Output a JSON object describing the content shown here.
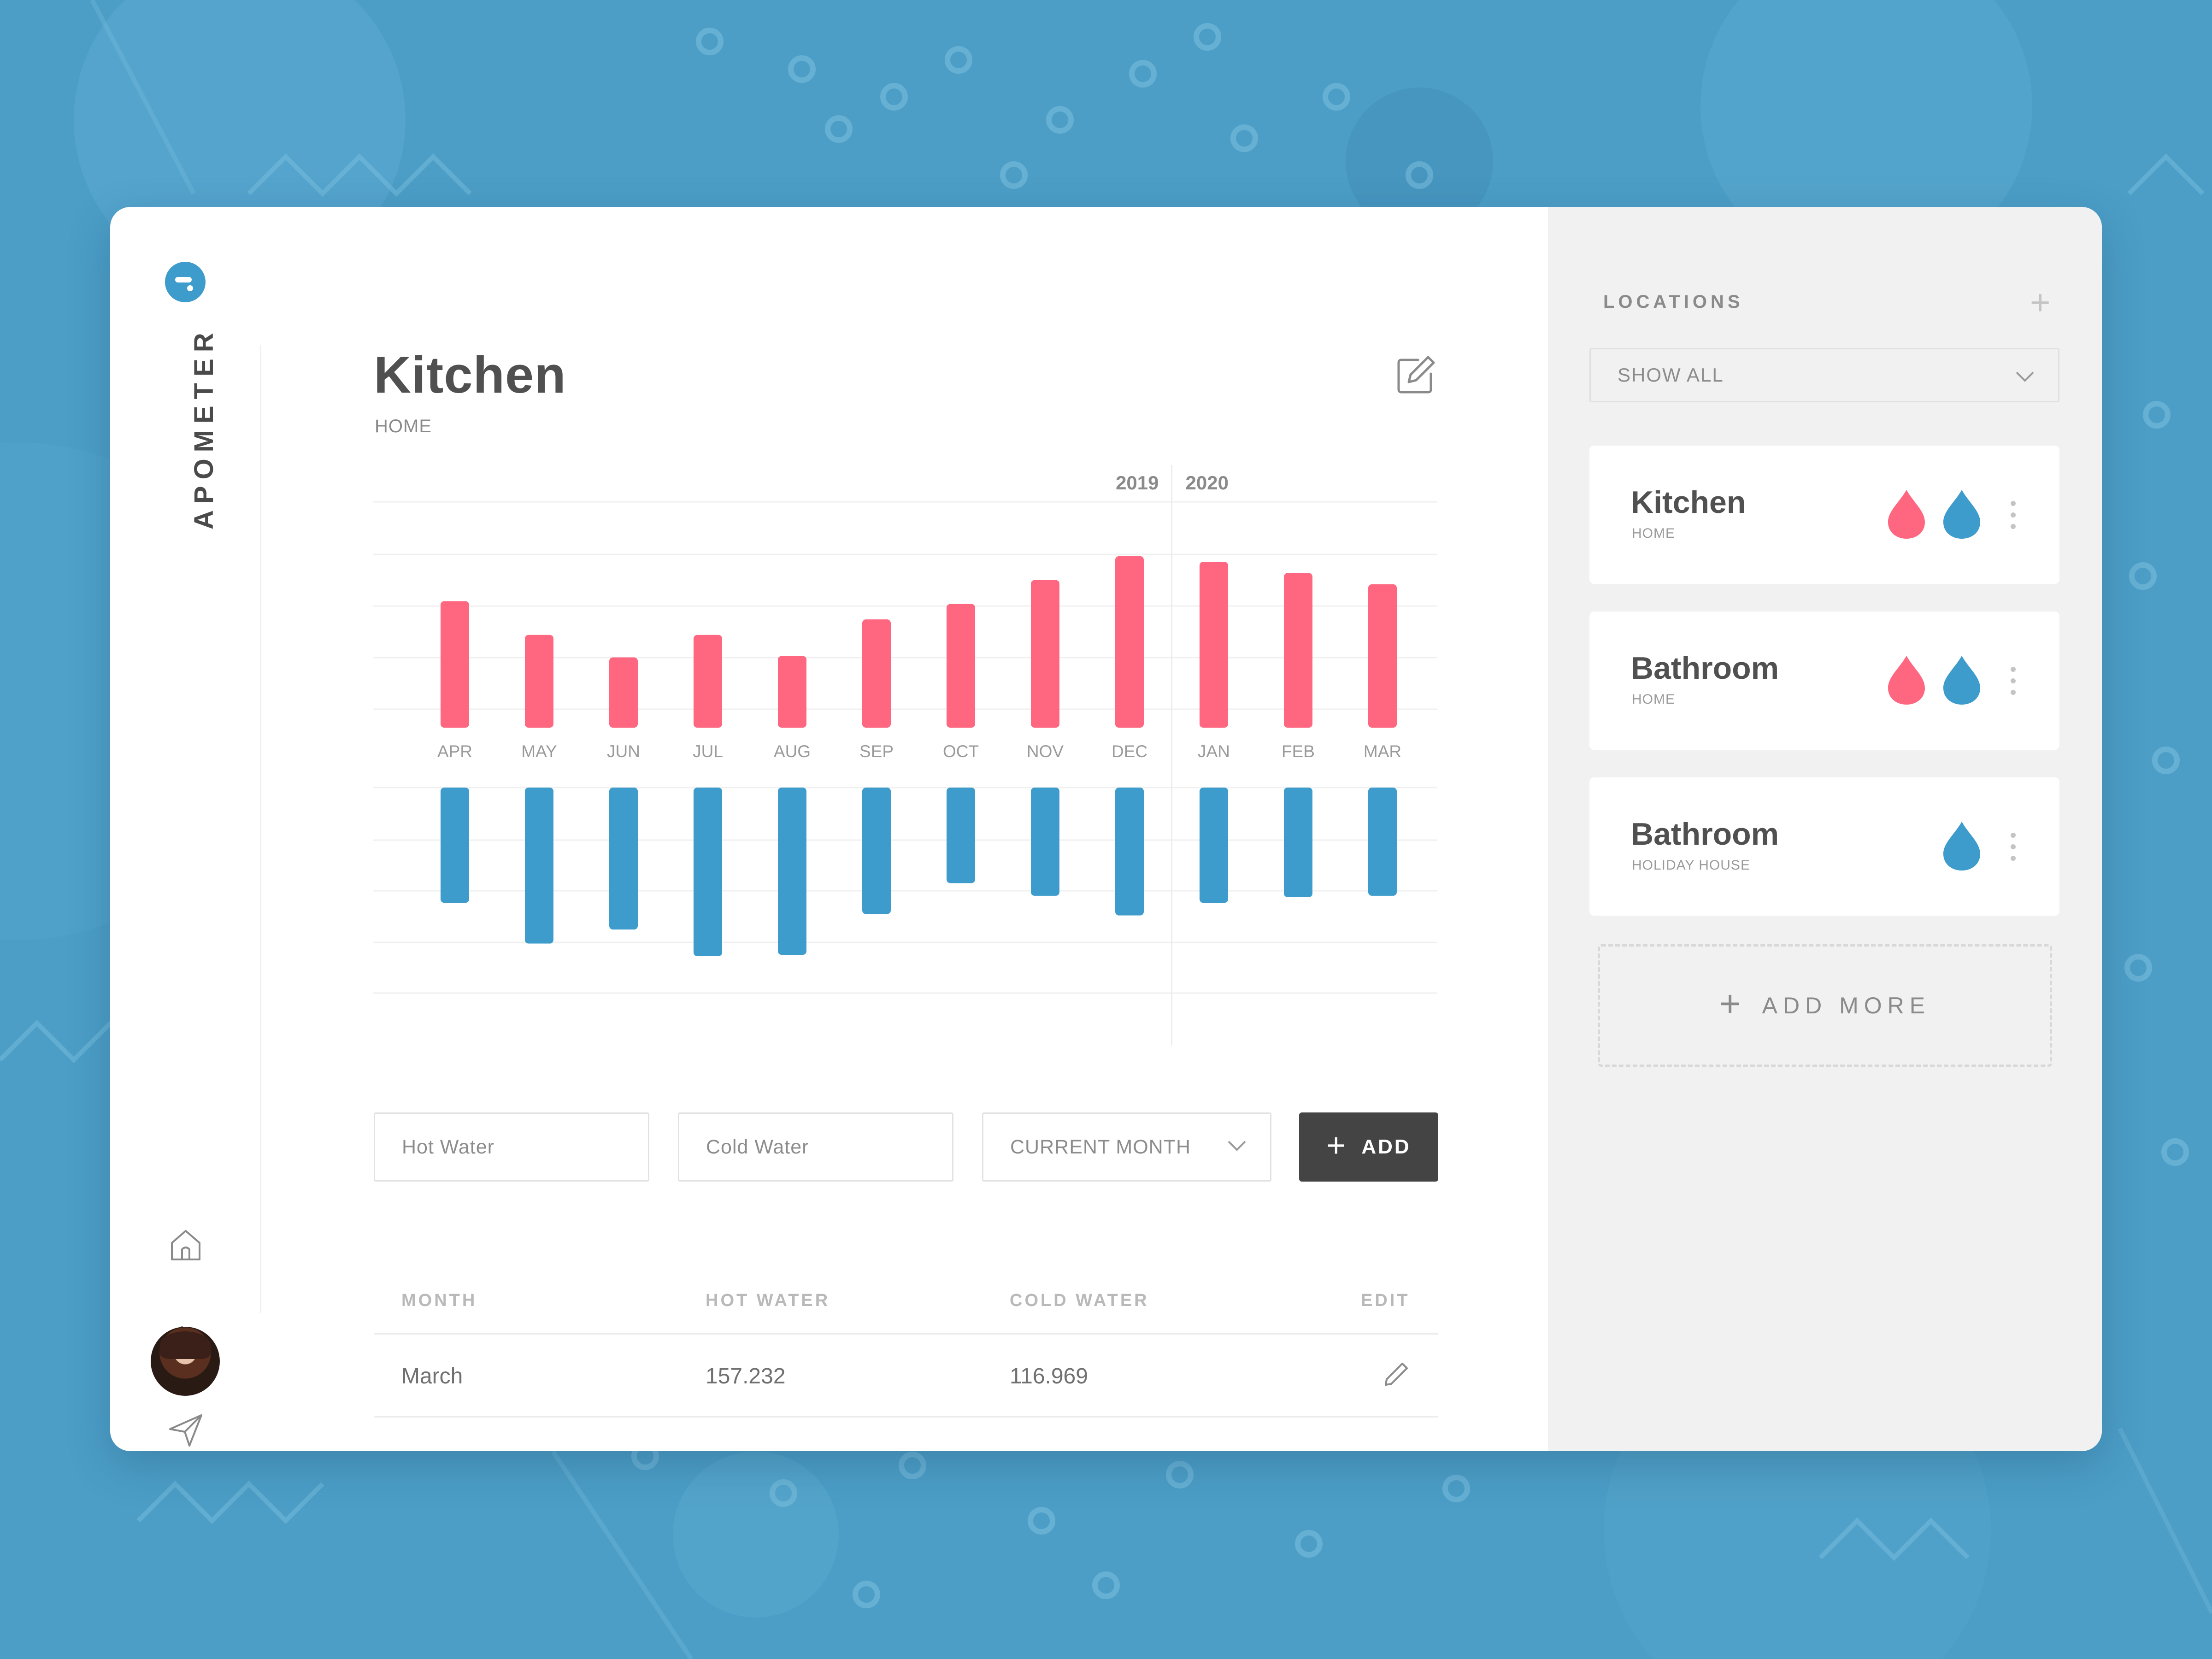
{
  "theme": {
    "hot_color": "#ff6680",
    "cold_color": "#3d9ccb",
    "accent": "#3d9ccb",
    "dark_button": "#444444"
  },
  "app": {
    "brand": "APOMETER"
  },
  "sidebar": {
    "icons": [
      "home-icon",
      "activity-icon",
      "send-icon"
    ]
  },
  "main": {
    "title": "Kitchen",
    "subtitle": "HOME"
  },
  "chart_data": {
    "type": "bar",
    "years": [
      "2019",
      "2020"
    ],
    "categories": [
      "APR",
      "MAY",
      "JUN",
      "JUL",
      "AUG",
      "SEP",
      "OCT",
      "NOV",
      "DEC",
      "JAN",
      "FEB",
      "MAR"
    ],
    "series": [
      {
        "values": [
          90,
          66,
          50,
          66,
          51,
          77,
          88,
          105,
          122,
          118,
          110,
          102
        ]
      },
      {
        "values": [
          82,
          111,
          101,
          120,
          119,
          90,
          68,
          77,
          91,
          82,
          78,
          77
        ]
      }
    ]
  },
  "form": {
    "hot_placeholder": "Hot Water",
    "cold_placeholder": "Cold Water",
    "period": "CURRENT MONTH",
    "add_label": "ADD"
  },
  "table": {
    "headers": [
      "MONTH",
      "HOT WATER",
      "COLD WATER",
      "EDIT"
    ],
    "rows": [
      {
        "month": "March",
        "hot": "157.232",
        "cold": "116.969"
      }
    ]
  },
  "locations": {
    "title": "LOCATIONS",
    "filter": "SHOW ALL",
    "items": [
      {
        "name": "Kitchen",
        "place": "HOME",
        "meters": [
          "hot",
          "cold"
        ]
      },
      {
        "name": "Bathroom",
        "place": "HOME",
        "meters": [
          "hot",
          "cold"
        ]
      },
      {
        "name": "Bathroom",
        "place": "HOLIDAY HOUSE",
        "meters": [
          "cold"
        ]
      }
    ],
    "add_more": "ADD MORE"
  }
}
